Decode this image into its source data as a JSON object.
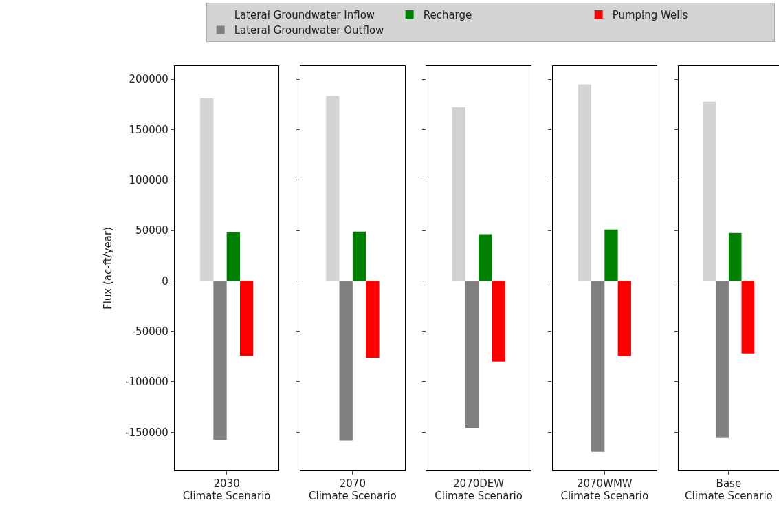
{
  "chart_data": [
    {
      "type": "bar",
      "categories": [
        "2030"
      ],
      "xlabel": "Climate Scenario",
      "ylabel": "Flux (ac-ft/year)",
      "ylim": [
        -188000,
        213000
      ],
      "yticks": [
        -150000,
        -100000,
        -50000,
        0,
        50000,
        100000,
        150000,
        200000
      ],
      "legend": "top",
      "series": [
        {
          "name": "Lateral Groundwater Inflow",
          "color": "#d3d3d3",
          "values": [
            181000
          ]
        },
        {
          "name": "Lateral Groundwater Outflow",
          "color": "#808080",
          "values": [
            -157500
          ]
        },
        {
          "name": "Recharge",
          "color": "#008000",
          "values": [
            48200
          ]
        },
        {
          "name": "Pumping Wells",
          "color": "#ff0000",
          "values": [
            -74100
          ]
        }
      ]
    },
    {
      "type": "bar",
      "categories": [
        "2070"
      ],
      "xlabel": "Climate Scenario",
      "ylim": [
        -188000,
        213000
      ],
      "yticks": [
        -150000,
        -100000,
        -50000,
        0,
        50000,
        100000,
        150000,
        200000
      ],
      "tick_labels": "x",
      "series": [
        {
          "color": "#d3d3d3",
          "values": [
            183400
          ]
        },
        {
          "color": "#808080",
          "values": [
            -158400
          ]
        },
        {
          "color": "#008000",
          "values": [
            48900
          ]
        },
        {
          "color": "#ff0000",
          "values": [
            -76100
          ]
        }
      ]
    },
    {
      "type": "bar",
      "categories": [
        "2070DEW"
      ],
      "xlabel": "Climate Scenario",
      "ylim": [
        -188000,
        213000
      ],
      "yticks": [
        -150000,
        -100000,
        -50000,
        0,
        50000,
        100000,
        150000,
        200000
      ],
      "tick_labels": "x",
      "series": [
        {
          "color": "#d3d3d3",
          "values": [
            172100
          ]
        },
        {
          "color": "#808080",
          "values": [
            -145800
          ]
        },
        {
          "color": "#008000",
          "values": [
            46200
          ]
        },
        {
          "color": "#ff0000",
          "values": [
            -80000
          ]
        }
      ]
    },
    {
      "type": "bar",
      "categories": [
        "2070WMW"
      ],
      "xlabel": "Climate Scenario",
      "ylim": [
        -188000,
        213000
      ],
      "yticks": [
        -150000,
        -100000,
        -50000,
        0,
        50000,
        100000,
        150000,
        200000
      ],
      "tick_labels": "x",
      "series": [
        {
          "color": "#d3d3d3",
          "values": [
            194900
          ]
        },
        {
          "color": "#808080",
          "values": [
            -169400
          ]
        },
        {
          "color": "#008000",
          "values": [
            50800
          ]
        },
        {
          "color": "#ff0000",
          "values": [
            -74400
          ]
        }
      ]
    },
    {
      "type": "bar",
      "categories": [
        "Base"
      ],
      "xlabel": "Climate Scenario",
      "ylim": [
        -188000,
        213000
      ],
      "yticks": [
        -150000,
        -100000,
        -50000,
        0,
        50000,
        100000,
        150000,
        200000
      ],
      "tick_labels": "x",
      "series": [
        {
          "color": "#d3d3d3",
          "values": [
            177700
          ]
        },
        {
          "color": "#808080",
          "values": [
            -155700
          ]
        },
        {
          "color": "#008000",
          "values": [
            47500
          ]
        },
        {
          "color": "#ff0000",
          "values": [
            -71900
          ]
        }
      ]
    }
  ]
}
